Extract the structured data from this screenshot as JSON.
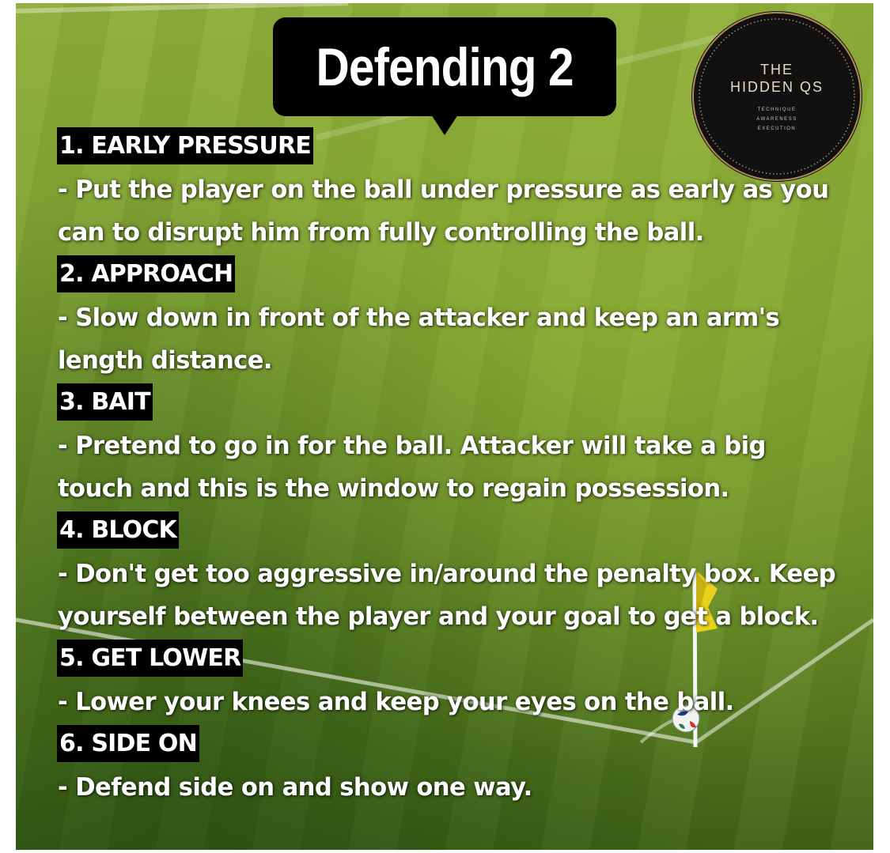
{
  "title": "Defending 2",
  "logo": {
    "line1": "THE",
    "line2": "HIDDEN QS",
    "tagline": [
      "TECHNIQUE",
      "AWARENESS",
      "EXECUTION"
    ]
  },
  "sections": [
    {
      "heading": "1. EARLY PRESSURE",
      "lines": [
        "- Put the player on the ball under pressure as early as you",
        "can to disrupt him from fully controlling the ball."
      ]
    },
    {
      "heading": "2. APPROACH",
      "lines": [
        "- Slow down in front of the attacker and keep an arm's",
        "length distance."
      ]
    },
    {
      "heading": "3. BAIT",
      "lines": [
        "- Pretend to go in for the ball. Attacker will take a big",
        "touch and this is the window to regain possession."
      ]
    },
    {
      "heading": "4. BLOCK",
      "lines": [
        "- Don't get too aggressive in/around the penalty box. Keep",
        "yourself between the player and your goal to get a block."
      ]
    },
    {
      "heading": "5. GET LOWER",
      "lines": [
        "- Lower your knees and keep your eyes on the ball."
      ]
    },
    {
      "heading": "6. SIDE ON",
      "lines": [
        "- Defend side on and show one way."
      ]
    }
  ]
}
